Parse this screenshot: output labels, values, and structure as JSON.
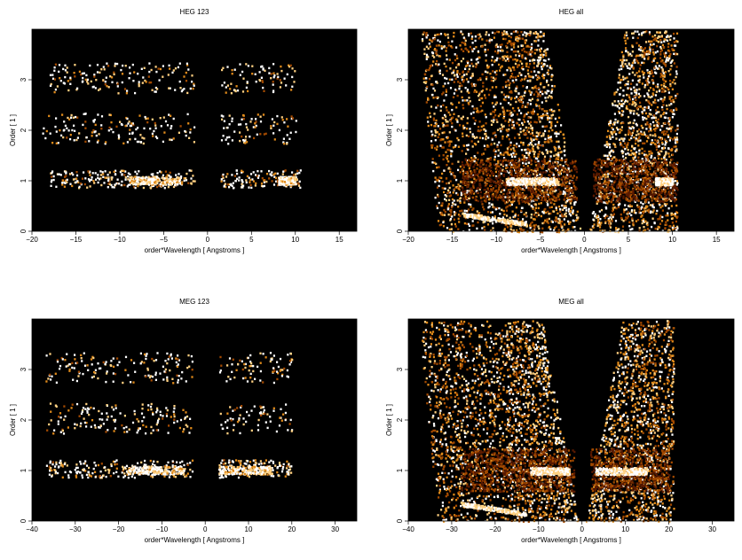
{
  "chart_data": [
    {
      "type": "heatmap",
      "title": "HEG 123",
      "xlabel": "order*Wavelength [ Angstroms ]",
      "ylabel": "Order [ 1 ]",
      "xlim": [
        -20,
        17
      ],
      "ylim": [
        0,
        4
      ],
      "xticks": [
        -20,
        -15,
        -10,
        -5,
        0,
        5,
        10,
        15
      ],
      "yticks": [
        0,
        1,
        2,
        3
      ],
      "mode": "orders",
      "bands": [
        {
          "order": 1,
          "x_min": -18,
          "x_max": 10.5,
          "peaks": [
            [
              -9,
              -3
            ],
            [
              8,
              10
            ]
          ]
        },
        {
          "order": 2,
          "x_min": -19,
          "x_max": 10,
          "peaks": []
        },
        {
          "order": 3,
          "x_min": -18,
          "x_max": 10,
          "peaks": []
        }
      ],
      "background": "#000000",
      "colormap": [
        "#000000",
        "#5a1a00",
        "#a34a00",
        "#e08a1a",
        "#ffd080",
        "#ffffff"
      ]
    },
    {
      "type": "heatmap",
      "title": "HEG all",
      "xlabel": "order*Wavelength [ Angstroms ]",
      "ylabel": "Order [ 1 ]",
      "xlim": [
        -20,
        17
      ],
      "ylim": [
        0,
        4
      ],
      "xticks": [
        -20,
        -15,
        -10,
        -5,
        0,
        5,
        10,
        15
      ],
      "yticks": [
        0,
        1,
        2,
        3
      ],
      "mode": "all",
      "bands": [
        {
          "order": 1,
          "x_min": -14,
          "x_max": 10.5,
          "peaks": [
            [
              -9,
              -3
            ],
            [
              8,
              10
            ]
          ]
        }
      ],
      "background": "#000000",
      "colormap": [
        "#000000",
        "#5a1a00",
        "#a34a00",
        "#e08a1a",
        "#ffd080",
        "#ffffff"
      ]
    },
    {
      "type": "heatmap",
      "title": "MEG 123",
      "xlabel": "order*Wavelength [ Angstroms ]",
      "ylabel": "Order [ 1 ]",
      "xlim": [
        -40,
        35
      ],
      "ylim": [
        0,
        4
      ],
      "xticks": [
        -40,
        -30,
        -20,
        -10,
        0,
        10,
        20,
        30
      ],
      "yticks": [
        0,
        1,
        2,
        3
      ],
      "mode": "orders",
      "bands": [
        {
          "order": 1,
          "x_min": -37,
          "x_max": 20,
          "peaks": [
            [
              -18,
              -5
            ],
            [
              3,
              15
            ]
          ]
        },
        {
          "order": 2,
          "x_min": -37,
          "x_max": 20,
          "peaks": []
        },
        {
          "order": 3,
          "x_min": -37,
          "x_max": 20,
          "peaks": []
        }
      ],
      "background": "#000000",
      "colormap": [
        "#000000",
        "#5a1a00",
        "#a34a00",
        "#e08a1a",
        "#ffd080",
        "#ffffff"
      ]
    },
    {
      "type": "heatmap",
      "title": "MEG all",
      "xlabel": "order*Wavelength [ Angstroms ]",
      "ylabel": "Order [ 1 ]",
      "xlim": [
        -40,
        35
      ],
      "ylim": [
        0,
        4
      ],
      "xticks": [
        -40,
        -30,
        -20,
        -10,
        0,
        10,
        20,
        30
      ],
      "yticks": [
        0,
        1,
        2,
        3
      ],
      "mode": "all",
      "bands": [
        {
          "order": 1,
          "x_min": -28,
          "x_max": 20,
          "peaks": [
            [
              -12,
              -3
            ],
            [
              3,
              15
            ]
          ]
        }
      ],
      "background": "#000000",
      "colormap": [
        "#000000",
        "#5a1a00",
        "#a34a00",
        "#e08a1a",
        "#ffd080",
        "#ffffff"
      ]
    }
  ]
}
